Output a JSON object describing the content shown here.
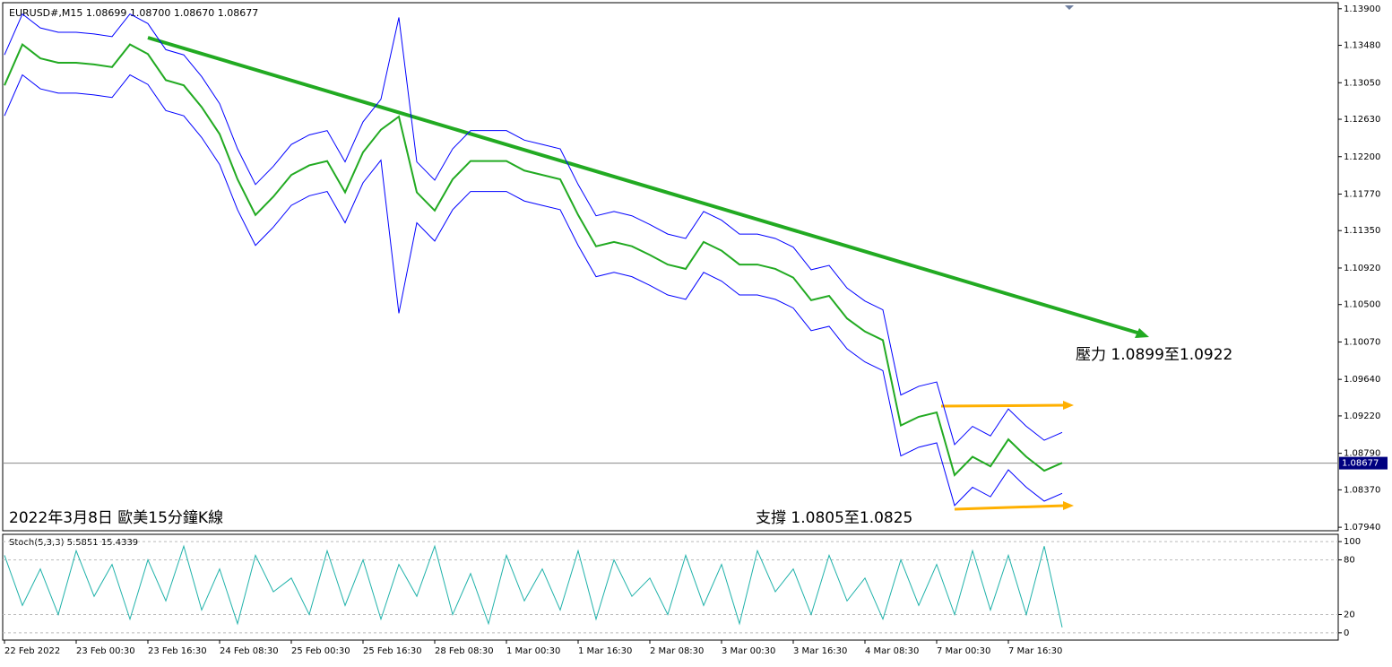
{
  "chart_data": [
    {
      "type": "line",
      "title": "EURUSD#,M15  1.08699 1.08700 1.08670 1.08677",
      "annotations": [
        "壓力 1.0899至1.0922",
        "支撐 1.0805至1.0825",
        "2022年3月8日 歐美15分鐘K線"
      ],
      "last_price": {
        "value": 1.08677,
        "label": "1.08677"
      },
      "categories": [
        "22 Feb 2022",
        null,
        null,
        null,
        "23 Feb 00:30",
        null,
        null,
        null,
        "23 Feb 16:30",
        null,
        null,
        null,
        "24 Feb 08:30",
        null,
        null,
        null,
        "25 Feb 00:30",
        null,
        null,
        null,
        "25 Feb 16:30",
        null,
        null,
        null,
        "28 Feb 08:30",
        null,
        null,
        null,
        "1 Mar 00:30",
        null,
        null,
        null,
        "1 Mar 16:30",
        null,
        null,
        null,
        "2 Mar 08:30",
        null,
        null,
        null,
        "3 Mar 00:30",
        null,
        null,
        null,
        "3 Mar 16:30",
        null,
        null,
        null,
        "4 Mar 08:30",
        null,
        null,
        null,
        "7 Mar 00:30",
        null,
        null,
        null,
        "7 Mar 16:30",
        null,
        null,
        null
      ],
      "series": [
        {
          "name": "Upper",
          "color": "#0000ff",
          "values": [
            1.1337,
            1.1384,
            1.1368,
            1.1363,
            1.1363,
            1.1361,
            1.1358,
            1.1384,
            1.1373,
            1.1343,
            1.1337,
            1.1312,
            1.1281,
            1.1229,
            1.1188,
            1.1209,
            1.1234,
            1.1245,
            1.125,
            1.1214,
            1.126,
            1.1286,
            1.138,
            1.1214,
            1.1193,
            1.1229,
            1.125,
            1.125,
            1.125,
            1.1239,
            1.1234,
            1.1229,
            1.1188,
            1.1152,
            1.1157,
            1.1152,
            1.1142,
            1.1131,
            1.1126,
            1.1157,
            1.1147,
            1.1131,
            1.1131,
            1.1126,
            1.1116,
            1.109,
            1.1095,
            1.1069,
            1.1054,
            1.1044,
            1.0946,
            1.0956,
            1.0961,
            1.0889,
            1.091,
            1.0899,
            1.093,
            1.091,
            1.0894,
            1.0903
          ]
        },
        {
          "name": "Close",
          "color": "#22aa22",
          "values": [
            1.1302,
            1.1349,
            1.1333,
            1.1328,
            1.1328,
            1.1326,
            1.1323,
            1.1349,
            1.1338,
            1.1308,
            1.1302,
            1.1277,
            1.1246,
            1.1194,
            1.1153,
            1.1174,
            1.1199,
            1.121,
            1.1215,
            1.1179,
            1.1225,
            1.1251,
            1.1266,
            1.1179,
            1.1158,
            1.1194,
            1.1215,
            1.1215,
            1.1215,
            1.1204,
            1.1199,
            1.1194,
            1.1153,
            1.1117,
            1.1122,
            1.1117,
            1.1107,
            1.1096,
            1.1091,
            1.1122,
            1.1112,
            1.1096,
            1.1096,
            1.1091,
            1.1081,
            1.1055,
            1.106,
            1.1034,
            1.1019,
            1.1009,
            1.0911,
            1.0921,
            1.0926,
            1.0854,
            1.0875,
            1.0864,
            1.0895,
            1.0875,
            1.0859,
            1.0868
          ]
        },
        {
          "name": "Lower",
          "color": "#0000ff",
          "values": [
            1.1267,
            1.1314,
            1.1298,
            1.1293,
            1.1293,
            1.1291,
            1.1288,
            1.1314,
            1.1303,
            1.1273,
            1.1267,
            1.1242,
            1.1211,
            1.1159,
            1.1118,
            1.1139,
            1.1164,
            1.1175,
            1.118,
            1.1144,
            1.119,
            1.1216,
            1.104,
            1.1144,
            1.1123,
            1.1159,
            1.118,
            1.118,
            1.118,
            1.1169,
            1.1164,
            1.1159,
            1.1118,
            1.1082,
            1.1087,
            1.1082,
            1.1072,
            1.1061,
            1.1056,
            1.1087,
            1.1077,
            1.1061,
            1.1061,
            1.1056,
            1.1046,
            1.102,
            1.1025,
            1.0999,
            1.0984,
            1.0974,
            1.0876,
            1.0886,
            1.0891,
            1.0819,
            1.084,
            1.0829,
            1.086,
            1.084,
            1.0824,
            1.0833
          ]
        }
      ],
      "ylim": [
        1.079,
        1.1397
      ],
      "yticks": [
        {
          "value": 1.139,
          "label": "1.13900"
        },
        {
          "value": 1.1348,
          "label": "1.13480"
        },
        {
          "value": 1.1305,
          "label": "1.13050"
        },
        {
          "value": 1.1263,
          "label": "1.12630"
        },
        {
          "value": 1.122,
          "label": "1.12200"
        },
        {
          "value": 1.1177,
          "label": "1.11770"
        },
        {
          "value": 1.1135,
          "label": "1.11350"
        },
        {
          "value": 1.1092,
          "label": "1.10920"
        },
        {
          "value": 1.105,
          "label": "1.10500"
        },
        {
          "value": 1.1007,
          "label": "1.10070"
        },
        {
          "value": 1.0964,
          "label": "1.09640"
        },
        {
          "value": 1.0922,
          "label": "1.09220"
        },
        {
          "value": 1.0879,
          "label": "1.08790"
        },
        {
          "value": 1.0837,
          "label": "1.08370"
        },
        {
          "value": 1.0794,
          "label": "1.07940"
        }
      ]
    },
    {
      "type": "line",
      "title": "Stoch(5,3,3) 5.5851 15.4339",
      "series": [
        {
          "name": "Stoch",
          "color": "#20b2aa",
          "values": [
            85,
            30,
            70,
            20,
            90,
            40,
            75,
            15,
            80,
            35,
            95,
            25,
            70,
            10,
            85,
            45,
            60,
            20,
            90,
            30,
            80,
            15,
            75,
            40,
            95,
            20,
            65,
            10,
            85,
            35,
            70,
            25,
            90,
            15,
            80,
            40,
            60,
            20,
            85,
            30,
            75,
            10,
            90,
            45,
            70,
            20,
            85,
            35,
            60,
            15,
            80,
            30,
            75,
            20,
            90,
            25,
            85,
            20,
            95,
            6
          ]
        }
      ],
      "ylim": [
        -8,
        108
      ],
      "yticks": [
        100,
        80,
        20,
        0
      ]
    }
  ]
}
